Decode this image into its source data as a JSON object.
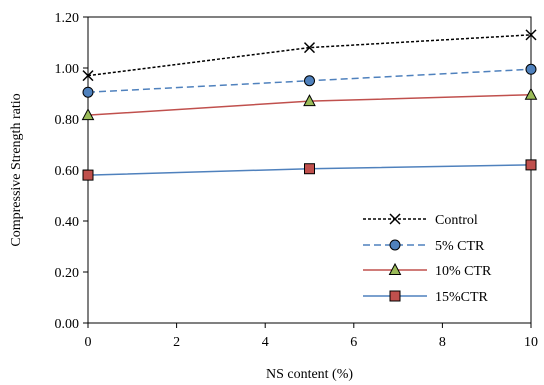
{
  "chart_data": {
    "type": "line",
    "xlabel": "NS content (%)",
    "ylabel": "Compressive Strength ratio",
    "xlim": [
      0,
      10
    ],
    "ylim": [
      0,
      1.2
    ],
    "x_ticks": [
      0,
      2,
      4,
      6,
      8,
      10
    ],
    "y_ticks": [
      0.0,
      0.2,
      0.4,
      0.6,
      0.8,
      1.0,
      1.2
    ],
    "y_tick_labels": [
      "0.00",
      "0.20",
      "0.40",
      "0.60",
      "0.80",
      "1.00",
      "1.20"
    ],
    "x": [
      0,
      5,
      10
    ],
    "grid": false,
    "legend_position": "bottom-right",
    "series": [
      {
        "name": "Control",
        "values": [
          0.97,
          1.08,
          1.13
        ],
        "color": "#000000",
        "dash": "dotted",
        "marker": "x"
      },
      {
        "name": "5% CTR",
        "values": [
          0.905,
          0.95,
          0.995
        ],
        "color": "#4f81bd",
        "dash": "dashed",
        "marker": "circle",
        "marker_fill": "#4f81bd"
      },
      {
        "name": "10% CTR",
        "values": [
          0.815,
          0.87,
          0.895
        ],
        "color": "#c0504d",
        "dash": "solid",
        "marker": "triangle",
        "marker_fill": "#9bbb59"
      },
      {
        "name": "15%CTR",
        "values": [
          0.58,
          0.605,
          0.62
        ],
        "color": "#4f81bd",
        "dash": "solid",
        "marker": "square",
        "marker_fill": "#c0504d"
      }
    ]
  }
}
